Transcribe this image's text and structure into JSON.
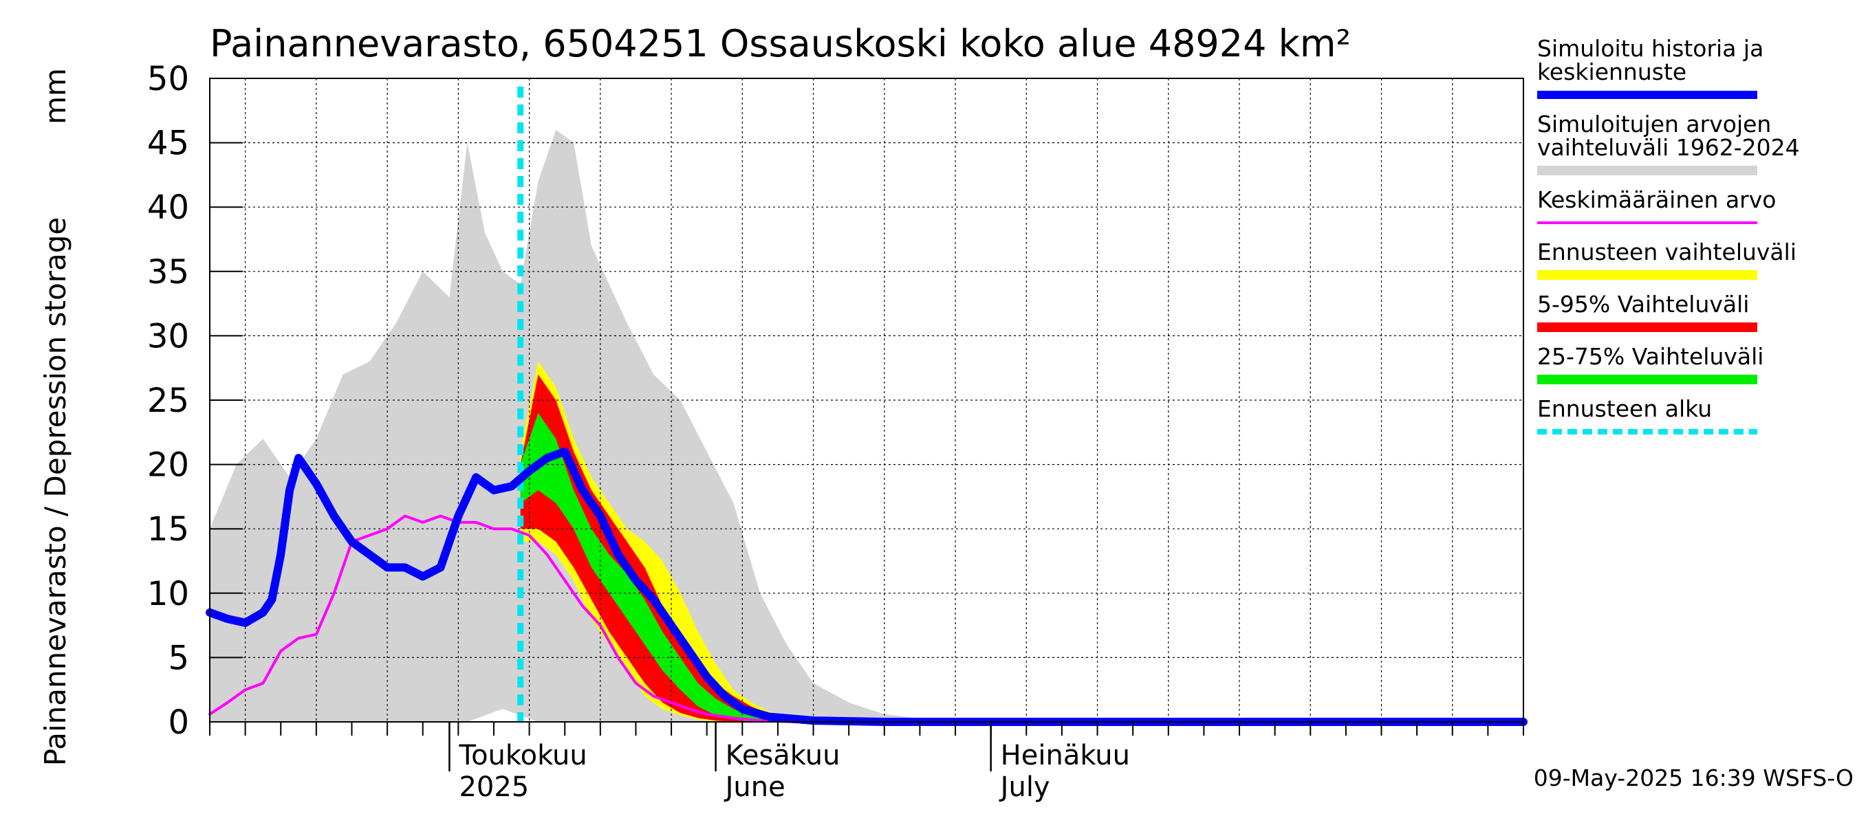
{
  "chart_data": {
    "type": "area",
    "title": "Painannevarasto, 6504251 Ossauskoski koko alue 48924 km²",
    "ylabel": "Painannevarasto / Depression storage",
    "unit": "mm",
    "ylim": [
      0,
      50
    ],
    "yticks": [
      0,
      5,
      10,
      15,
      20,
      25,
      30,
      35,
      40,
      45,
      50
    ],
    "xlim": [
      "2025-03-05",
      "2025-07-31"
    ],
    "grid": true,
    "month_labels": [
      {
        "date": "2025-04-01",
        "line1": "Toukokuu",
        "line2": "2025"
      },
      {
        "date": "2025-05-01",
        "line1": "Kesäkuu",
        "line2": "June"
      },
      {
        "date": "2025-06-01",
        "line1": "Heinäkuu",
        "line2": "July"
      }
    ],
    "forecast_start": "2025-04-09",
    "legend": [
      {
        "label_lines": [
          "Simuloitu historia ja",
          "keskiennuste"
        ],
        "color": "#0000ff",
        "style": "thick"
      },
      {
        "label_lines": [
          "Simuloitujen arvojen",
          "vaihteluväli 1962-2024"
        ],
        "color": "#d3d3d3",
        "style": "band"
      },
      {
        "label_lines": [
          "Keskimääräinen arvo"
        ],
        "color": "#ff00ff",
        "style": "thin"
      },
      {
        "label_lines": [
          "Ennusteen vaihteluväli"
        ],
        "color": "#ffff00",
        "style": "band"
      },
      {
        "label_lines": [
          "5-95% Vaihteluväli"
        ],
        "color": "#ff0000",
        "style": "band"
      },
      {
        "label_lines": [
          "25-75% Vaihteluväli"
        ],
        "color": "#00ee00",
        "style": "band"
      },
      {
        "label_lines": [
          "Ennusteen alku"
        ],
        "color": "#00e5ee",
        "style": "dashed"
      }
    ],
    "series": [
      {
        "name": "Simuloitujen arvojen vaihteluväli 1962-2024",
        "kind": "band",
        "color": "#d3d3d3",
        "x": [
          "2025-03-05",
          "2025-03-08",
          "2025-03-11",
          "2025-03-14",
          "2025-03-17",
          "2025-03-20",
          "2025-03-23",
          "2025-03-26",
          "2025-03-29",
          "2025-04-01",
          "2025-04-03",
          "2025-04-05",
          "2025-04-07",
          "2025-04-09",
          "2025-04-11",
          "2025-04-13",
          "2025-04-15",
          "2025-04-17",
          "2025-04-19",
          "2025-04-21",
          "2025-04-24",
          "2025-04-27",
          "2025-04-30",
          "2025-05-03",
          "2025-05-06",
          "2025-05-09",
          "2025-05-12",
          "2025-05-16",
          "2025-05-20",
          "2025-05-25",
          "2025-05-31"
        ],
        "upper": [
          15,
          20,
          22,
          19,
          22,
          27,
          28,
          31,
          35,
          33,
          45,
          38,
          35,
          34,
          42,
          46,
          45,
          37,
          34,
          31,
          27,
          25,
          21,
          17,
          10,
          6,
          3,
          1.5,
          0.6,
          0.2,
          0
        ],
        "lower": [
          0,
          0,
          0,
          0,
          0,
          0,
          0,
          0,
          0,
          0,
          0,
          0.5,
          1,
          0.5,
          0,
          0,
          0,
          0,
          0,
          0,
          0,
          0,
          0,
          0,
          0,
          0,
          0,
          0,
          0,
          0,
          0
        ]
      },
      {
        "name": "Ennusteen vaihteluväli",
        "kind": "band",
        "color": "#ffff00",
        "x": [
          "2025-04-09",
          "2025-04-11",
          "2025-04-13",
          "2025-04-15",
          "2025-04-17",
          "2025-04-19",
          "2025-04-21",
          "2025-04-23",
          "2025-04-25",
          "2025-04-27",
          "2025-04-29",
          "2025-05-01",
          "2025-05-03",
          "2025-05-05",
          "2025-05-07",
          "2025-05-10",
          "2025-05-14"
        ],
        "upper": [
          21,
          28,
          26,
          22,
          19,
          17,
          15,
          14,
          12.5,
          10,
          7,
          4.5,
          2.5,
          1.5,
          0.8,
          0.3,
          0
        ],
        "lower": [
          14,
          14,
          13,
          11,
          8,
          6,
          4,
          2,
          1,
          0.5,
          0.2,
          0,
          0,
          0,
          0,
          0,
          0
        ]
      },
      {
        "name": "5-95% Vaihteluväli",
        "kind": "band",
        "color": "#ff0000",
        "x": [
          "2025-04-09",
          "2025-04-11",
          "2025-04-13",
          "2025-04-15",
          "2025-04-17",
          "2025-04-19",
          "2025-04-21",
          "2025-04-23",
          "2025-04-25",
          "2025-04-27",
          "2025-04-29",
          "2025-05-01",
          "2025-05-03",
          "2025-05-05",
          "2025-05-07",
          "2025-05-10",
          "2025-05-14"
        ],
        "upper": [
          20,
          27,
          25,
          21,
          18,
          16,
          14,
          12,
          9,
          6.5,
          4.5,
          3,
          2,
          1.2,
          0.6,
          0.2,
          0
        ],
        "lower": [
          15,
          15,
          14,
          12,
          9.5,
          7,
          5,
          3,
          1.5,
          0.7,
          0.3,
          0.1,
          0,
          0,
          0,
          0,
          0
        ]
      },
      {
        "name": "25-75% Vaihteluväli",
        "kind": "band",
        "color": "#00ee00",
        "x": [
          "2025-04-09",
          "2025-04-11",
          "2025-04-13",
          "2025-04-15",
          "2025-04-17",
          "2025-04-19",
          "2025-04-21",
          "2025-04-23",
          "2025-04-25",
          "2025-04-27",
          "2025-04-29",
          "2025-05-01",
          "2025-05-03",
          "2025-05-05",
          "2025-05-07",
          "2025-05-10",
          "2025-05-14"
        ],
        "upper": [
          20,
          24,
          22,
          18,
          15,
          13,
          11.5,
          9.5,
          7,
          5,
          3,
          1.8,
          1,
          0.5,
          0.2,
          0.1,
          0
        ],
        "lower": [
          17,
          18,
          17,
          15,
          12,
          10,
          8,
          6,
          4,
          2.5,
          1.2,
          0.5,
          0.2,
          0,
          0,
          0,
          0
        ]
      },
      {
        "name": "Keskimääräinen arvo",
        "kind": "line",
        "color": "#ff00ff",
        "width": 4,
        "x": [
          "2025-03-05",
          "2025-03-07",
          "2025-03-09",
          "2025-03-11",
          "2025-03-13",
          "2025-03-15",
          "2025-03-17",
          "2025-03-19",
          "2025-03-21",
          "2025-03-23",
          "2025-03-25",
          "2025-03-27",
          "2025-03-29",
          "2025-03-31",
          "2025-04-02",
          "2025-04-04",
          "2025-04-06",
          "2025-04-08",
          "2025-04-10",
          "2025-04-12",
          "2025-04-14",
          "2025-04-16",
          "2025-04-18",
          "2025-04-20",
          "2025-04-22",
          "2025-04-24",
          "2025-04-26",
          "2025-04-28",
          "2025-04-30",
          "2025-05-03",
          "2025-05-06",
          "2025-05-10",
          "2025-05-15",
          "2025-05-20",
          "2025-07-31"
        ],
        "values": [
          0.6,
          1.5,
          2.5,
          3,
          5.5,
          6.5,
          6.8,
          10,
          14,
          14.5,
          15,
          16,
          15.5,
          16,
          15.5,
          15.5,
          15,
          15,
          14.5,
          13,
          11,
          9,
          7.5,
          5,
          3,
          2,
          1.5,
          1,
          0.6,
          0.3,
          0.1,
          0,
          0,
          0,
          0
        ]
      },
      {
        "name": "Simuloitu historia ja keskiennuste",
        "kind": "line",
        "color": "#0000ff",
        "width": 12,
        "x": [
          "2025-03-05",
          "2025-03-07",
          "2025-03-09",
          "2025-03-11",
          "2025-03-12",
          "2025-03-13",
          "2025-03-14",
          "2025-03-15",
          "2025-03-17",
          "2025-03-19",
          "2025-03-21",
          "2025-03-23",
          "2025-03-25",
          "2025-03-27",
          "2025-03-29",
          "2025-03-31",
          "2025-04-01",
          "2025-04-02",
          "2025-04-03",
          "2025-04-04",
          "2025-04-06",
          "2025-04-08",
          "2025-04-10",
          "2025-04-12",
          "2025-04-14",
          "2025-04-16",
          "2025-04-18",
          "2025-04-20",
          "2025-04-22",
          "2025-04-24",
          "2025-04-26",
          "2025-04-28",
          "2025-04-30",
          "2025-05-02",
          "2025-05-04",
          "2025-05-07",
          "2025-05-12",
          "2025-05-20",
          "2025-07-31"
        ],
        "values": [
          8.5,
          8,
          7.7,
          8.5,
          9.5,
          13,
          18,
          20.5,
          18.5,
          16,
          14,
          13,
          12,
          12,
          11.3,
          12,
          14,
          16,
          17.5,
          19,
          18,
          18.3,
          19.5,
          20.5,
          21,
          18,
          16,
          13,
          11,
          9.5,
          7.5,
          5.5,
          3.5,
          2,
          1,
          0.4,
          0.1,
          0,
          0
        ]
      }
    ]
  },
  "footer": {
    "timestamp": "09-May-2025 16:39 WSFS-O"
  }
}
